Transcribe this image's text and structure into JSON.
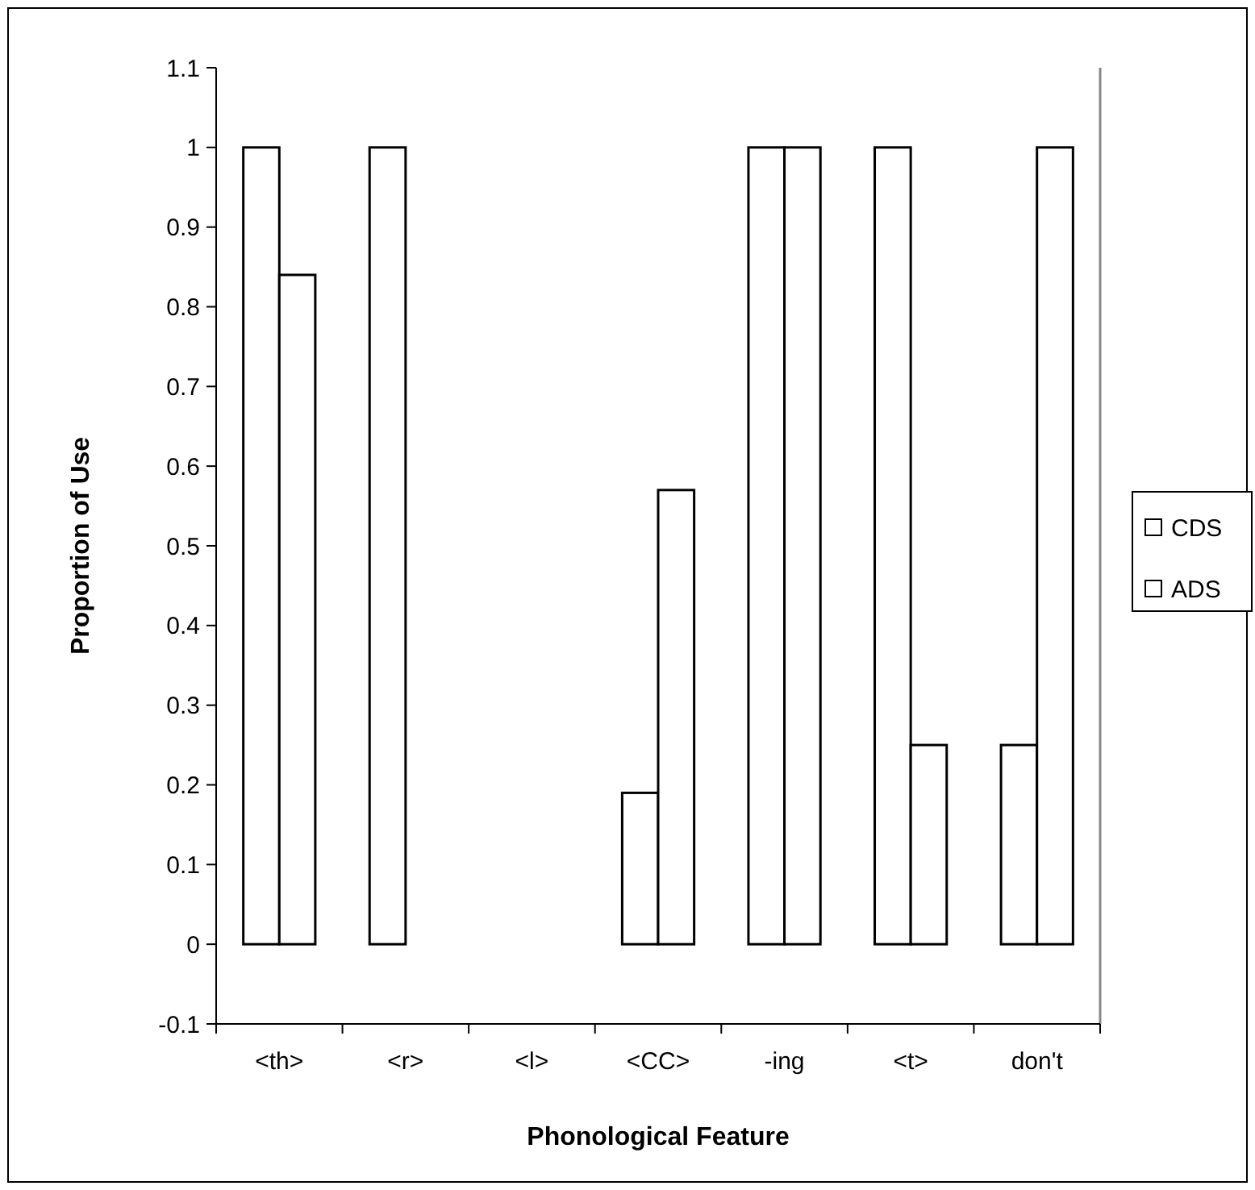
{
  "chart_data": {
    "type": "bar",
    "xlabel": "Phonological Feature",
    "ylabel": "Proportion of Use",
    "categories": [
      "<th>",
      "<r>",
      "<l>",
      "<CC>",
      "-ing",
      "<t>",
      "don't"
    ],
    "series": [
      {
        "name": "CDS",
        "color": "#ffffff",
        "values": [
          1,
          1,
          0,
          0.19,
          1,
          1,
          0.25
        ]
      },
      {
        "name": "ADS",
        "color": "#ffffff",
        "values": [
          0.84,
          0,
          0,
          0.57,
          1,
          0.25,
          1
        ]
      }
    ],
    "ylim": [
      -0.1,
      1.1
    ],
    "yticks": [
      -0.1,
      0,
      0.1,
      0.2,
      0.3,
      0.4,
      0.5,
      0.6,
      0.7,
      0.8,
      0.9,
      1,
      1.1
    ],
    "grid": false,
    "legend": "right"
  }
}
